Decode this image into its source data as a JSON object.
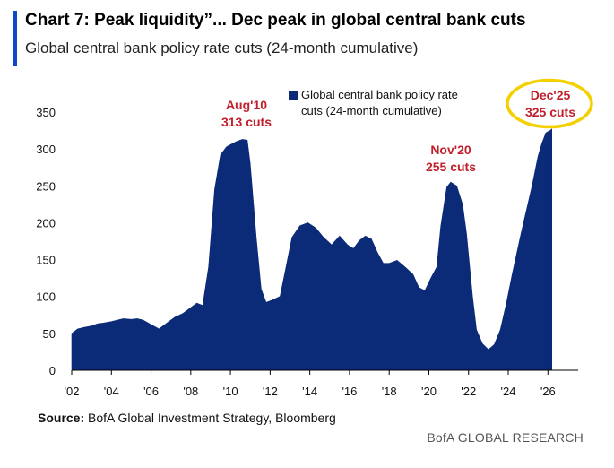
{
  "header": {
    "title": "Chart 7: Peak liquidity”... Dec peak in global central bank cuts",
    "subtitle": "Global central bank policy rate cuts (24-month cumulative)"
  },
  "source": {
    "label": "Source:",
    "text": " BofA Global Investment Strategy, Bloomberg"
  },
  "footer": {
    "brand": "BofA GLOBAL RESEARCH"
  },
  "colors": {
    "area": "#0b2a78",
    "annotation": "#c0202b",
    "highlight": "#f5d000",
    "accent": "#0d47c8"
  },
  "chart_data": {
    "type": "area",
    "title": "",
    "xlabel": "",
    "ylabel": "",
    "ylim": [
      0,
      350
    ],
    "xlim": [
      2002,
      2026.8
    ],
    "yticks": [
      0,
      50,
      100,
      150,
      200,
      250,
      300,
      350
    ],
    "xtick_labels": [
      "'02",
      "'04",
      "'06",
      "'08",
      "'10",
      "'12",
      "'14",
      "'16",
      "'18",
      "'20",
      "'22",
      "'24",
      "'26"
    ],
    "xtick_positions": [
      2002,
      2004,
      2006,
      2008,
      2010,
      2012,
      2014,
      2016,
      2018,
      2020,
      2022,
      2024,
      2026
    ],
    "legend": {
      "position": "top-center",
      "entries": [
        "Global central bank policy rate cuts (24-month cumulative)"
      ],
      "line1": "Global central bank policy rate",
      "line2": "cuts (24-month cumulative)"
    },
    "series": [
      {
        "name": "Global central bank policy rate cuts (24-month cumulative)",
        "points": [
          [
            2002.0,
            50
          ],
          [
            2002.3,
            56
          ],
          [
            2002.6,
            58
          ],
          [
            2003.0,
            60
          ],
          [
            2003.3,
            63
          ],
          [
            2003.6,
            64
          ],
          [
            2004.0,
            66
          ],
          [
            2004.3,
            68
          ],
          [
            2004.6,
            70
          ],
          [
            2005.0,
            69
          ],
          [
            2005.3,
            70
          ],
          [
            2005.6,
            68
          ],
          [
            2006.0,
            62
          ],
          [
            2006.4,
            56
          ],
          [
            2006.8,
            64
          ],
          [
            2007.2,
            72
          ],
          [
            2007.6,
            77
          ],
          [
            2008.0,
            85
          ],
          [
            2008.3,
            91
          ],
          [
            2008.6,
            88
          ],
          [
            2008.9,
            140
          ],
          [
            2009.2,
            245
          ],
          [
            2009.5,
            292
          ],
          [
            2009.8,
            303
          ],
          [
            2010.3,
            310
          ],
          [
            2010.6,
            313
          ],
          [
            2010.85,
            312
          ],
          [
            2011.0,
            280
          ],
          [
            2011.3,
            180
          ],
          [
            2011.55,
            110
          ],
          [
            2011.8,
            92
          ],
          [
            2012.1,
            95
          ],
          [
            2012.5,
            100
          ],
          [
            2012.8,
            140
          ],
          [
            2013.1,
            180
          ],
          [
            2013.5,
            196
          ],
          [
            2013.9,
            200
          ],
          [
            2014.3,
            193
          ],
          [
            2014.7,
            180
          ],
          [
            2015.1,
            170
          ],
          [
            2015.5,
            182
          ],
          [
            2015.9,
            170
          ],
          [
            2016.2,
            165
          ],
          [
            2016.5,
            176
          ],
          [
            2016.8,
            182
          ],
          [
            2017.1,
            178
          ],
          [
            2017.4,
            160
          ],
          [
            2017.7,
            145
          ],
          [
            2018.0,
            145
          ],
          [
            2018.4,
            149
          ],
          [
            2018.8,
            140
          ],
          [
            2019.2,
            130
          ],
          [
            2019.5,
            112
          ],
          [
            2019.8,
            108
          ],
          [
            2020.1,
            125
          ],
          [
            2020.4,
            140
          ],
          [
            2020.6,
            195
          ],
          [
            2020.9,
            248
          ],
          [
            2021.1,
            255
          ],
          [
            2021.4,
            250
          ],
          [
            2021.7,
            225
          ],
          [
            2021.9,
            185
          ],
          [
            2022.2,
            100
          ],
          [
            2022.4,
            55
          ],
          [
            2022.7,
            36
          ],
          [
            2023.0,
            28
          ],
          [
            2023.3,
            35
          ],
          [
            2023.6,
            55
          ],
          [
            2023.9,
            90
          ],
          [
            2024.2,
            130
          ],
          [
            2024.6,
            180
          ],
          [
            2024.9,
            215
          ],
          [
            2025.2,
            250
          ],
          [
            2025.5,
            290
          ],
          [
            2025.7,
            308
          ],
          [
            2025.9,
            322
          ],
          [
            2026.1,
            325
          ],
          [
            2026.2,
            327
          ]
        ]
      }
    ],
    "annotations": [
      {
        "line1": "Aug'10",
        "line2": "313 cuts",
        "x": 2010.6,
        "y": 313,
        "highlighted": false
      },
      {
        "line1": "Nov'20",
        "line2": "255 cuts",
        "x": 2020.9,
        "y": 255,
        "highlighted": false
      },
      {
        "line1": "Dec'25",
        "line2": "325 cuts",
        "x": 2025.9,
        "y": 325,
        "highlighted": true
      }
    ]
  }
}
